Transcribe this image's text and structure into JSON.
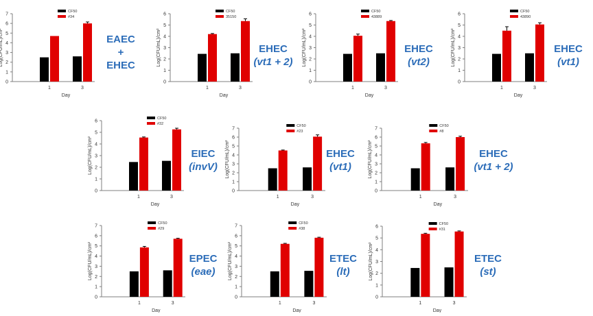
{
  "chart_data": [
    {
      "type": "bar",
      "title": "",
      "xlabel": "Day",
      "ylabel": "Log(CFU/mL)/cm²",
      "categories": [
        "1",
        "3"
      ],
      "ylim": [
        0,
        7
      ],
      "yticks": [
        0,
        1,
        2,
        3,
        4,
        5,
        6,
        7
      ],
      "series": [
        {
          "name": "CF50",
          "color": "#000000",
          "values": [
            2.5,
            2.6
          ]
        },
        {
          "name": "#34",
          "color": "#e00000",
          "values": [
            4.7,
            6.0
          ]
        }
      ],
      "errors": [
        [
          0,
          0
        ],
        [
          0,
          0.15
        ]
      ],
      "label": {
        "line1": "EAEC",
        "line2": "+",
        "line3": "EHEC"
      }
    },
    {
      "type": "bar",
      "title": "",
      "xlabel": "Day",
      "ylabel": "Log(CFU/mL)/cm²",
      "categories": [
        "1",
        "3"
      ],
      "ylim": [
        0,
        6
      ],
      "yticks": [
        0,
        1,
        2,
        3,
        4,
        5,
        6
      ],
      "series": [
        {
          "name": "CF50",
          "color": "#000000",
          "values": [
            2.45,
            2.5
          ]
        },
        {
          "name": "35150",
          "color": "#e00000",
          "values": [
            4.2,
            5.35
          ]
        }
      ],
      "errors": [
        [
          0,
          0
        ],
        [
          0.05,
          0.2
        ]
      ],
      "label": {
        "line1": "EHEC",
        "line2": "(vt1 + 2)"
      }
    },
    {
      "type": "bar",
      "title": "",
      "xlabel": "Day",
      "ylabel": "Log(CFU/mL)/cm²",
      "categories": [
        "1",
        "3"
      ],
      "ylim": [
        0,
        6
      ],
      "yticks": [
        0,
        1,
        2,
        3,
        4,
        5,
        6
      ],
      "series": [
        {
          "name": "CF50",
          "color": "#000000",
          "values": [
            2.45,
            2.5
          ]
        },
        {
          "name": "43889",
          "color": "#e00000",
          "values": [
            4.05,
            5.35
          ]
        }
      ],
      "errors": [
        [
          0,
          0
        ],
        [
          0.15,
          0.05
        ]
      ],
      "label": {
        "line1": "EHEC",
        "line2": "(vt2)"
      }
    },
    {
      "type": "bar",
      "title": "",
      "xlabel": "Day",
      "ylabel": "Log(CFU/mL)/cm²",
      "categories": [
        "1",
        "3"
      ],
      "ylim": [
        0,
        6
      ],
      "yticks": [
        0,
        1,
        2,
        3,
        4,
        5,
        6
      ],
      "series": [
        {
          "name": "CF50",
          "color": "#000000",
          "values": [
            2.45,
            2.5
          ]
        },
        {
          "name": "43890",
          "color": "#e00000",
          "values": [
            4.5,
            5.05
          ]
        }
      ],
      "errors": [
        [
          0,
          0
        ],
        [
          0.35,
          0.15
        ]
      ],
      "label": {
        "line1": "EHEC",
        "line2": "(vt1)"
      }
    },
    {
      "type": "bar",
      "title": "",
      "xlabel": "Day",
      "ylabel": "Log(CFU/mL)/cm²",
      "categories": [
        "1",
        "3"
      ],
      "ylim": [
        0,
        6
      ],
      "yticks": [
        0,
        1,
        2,
        3,
        4,
        5,
        6
      ],
      "series": [
        {
          "name": "CF50",
          "color": "#000000",
          "values": [
            2.45,
            2.55
          ]
        },
        {
          "name": "#32",
          "color": "#e00000",
          "values": [
            4.55,
            5.25
          ]
        }
      ],
      "errors": [
        [
          0,
          0
        ],
        [
          0.05,
          0.1
        ]
      ],
      "label": {
        "line1": "EIEC",
        "line2": "(invV)"
      }
    },
    {
      "type": "bar",
      "title": "",
      "xlabel": "Day",
      "ylabel": "Log(CFU/mL)/cm²",
      "categories": [
        "1",
        "3"
      ],
      "ylim": [
        0,
        7
      ],
      "yticks": [
        0,
        1,
        2,
        3,
        4,
        5,
        6,
        7
      ],
      "series": [
        {
          "name": "CF50",
          "color": "#000000",
          "values": [
            2.5,
            2.6
          ]
        },
        {
          "name": "#23",
          "color": "#e00000",
          "values": [
            4.5,
            6.05
          ]
        }
      ],
      "errors": [
        [
          0,
          0
        ],
        [
          0.05,
          0.2
        ]
      ],
      "label": {
        "line1": "EHEC",
        "line2": "(vt1)"
      }
    },
    {
      "type": "bar",
      "title": "",
      "xlabel": "Day",
      "ylabel": "Log(CFU/mL)/cm²",
      "categories": [
        "1",
        "3"
      ],
      "ylim": [
        0,
        7
      ],
      "yticks": [
        0,
        1,
        2,
        3,
        4,
        5,
        6,
        7
      ],
      "series": [
        {
          "name": "CF50",
          "color": "#000000",
          "values": [
            2.5,
            2.6
          ]
        },
        {
          "name": "#8",
          "color": "#e00000",
          "values": [
            5.3,
            6.0
          ]
        }
      ],
      "errors": [
        [
          0,
          0
        ],
        [
          0.1,
          0.1
        ]
      ],
      "label": {
        "line1": "EHEC",
        "line2": "(vt1 + 2)"
      }
    },
    {
      "type": "bar",
      "title": "",
      "xlabel": "Day",
      "ylabel": "Log(CFU/mL)/cm²",
      "categories": [
        "1",
        "3"
      ],
      "ylim": [
        0,
        7
      ],
      "yticks": [
        0,
        1,
        2,
        3,
        4,
        5,
        6,
        7
      ],
      "series": [
        {
          "name": "CF50",
          "color": "#000000",
          "values": [
            2.5,
            2.6
          ]
        },
        {
          "name": "#29",
          "color": "#e00000",
          "values": [
            4.85,
            5.7
          ]
        }
      ],
      "errors": [
        [
          0,
          0
        ],
        [
          0.1,
          0.05
        ]
      ],
      "label": {
        "line1": "EPEC",
        "line2": "(eae)"
      }
    },
    {
      "type": "bar",
      "title": "",
      "xlabel": "Day",
      "ylabel": "Log(CFU/mL)/cm²",
      "categories": [
        "1",
        "3"
      ],
      "ylim": [
        0,
        7
      ],
      "yticks": [
        0,
        1,
        2,
        3,
        4,
        5,
        6,
        7
      ],
      "series": [
        {
          "name": "CF50",
          "color": "#000000",
          "values": [
            2.5,
            2.55
          ]
        },
        {
          "name": "#38",
          "color": "#e00000",
          "values": [
            5.2,
            5.8
          ]
        }
      ],
      "errors": [
        [
          0,
          0
        ],
        [
          0.05,
          0.05
        ]
      ],
      "label": {
        "line1": "ETEC",
        "line2": "(lt)"
      }
    },
    {
      "type": "bar",
      "title": "",
      "xlabel": "Day",
      "ylabel": "Log(CFU/mL)/cm²",
      "categories": [
        "1",
        "3"
      ],
      "ylim": [
        0,
        6
      ],
      "yticks": [
        0,
        1,
        2,
        3,
        4,
        5,
        6
      ],
      "series": [
        {
          "name": "CF50",
          "color": "#000000",
          "values": [
            2.45,
            2.5
          ]
        },
        {
          "name": "#31",
          "color": "#e00000",
          "values": [
            5.35,
            5.55
          ]
        }
      ],
      "errors": [
        [
          0,
          0
        ],
        [
          0.05,
          0.05
        ]
      ],
      "label": {
        "line1": "ETEC",
        "line2": "(st)"
      }
    }
  ]
}
